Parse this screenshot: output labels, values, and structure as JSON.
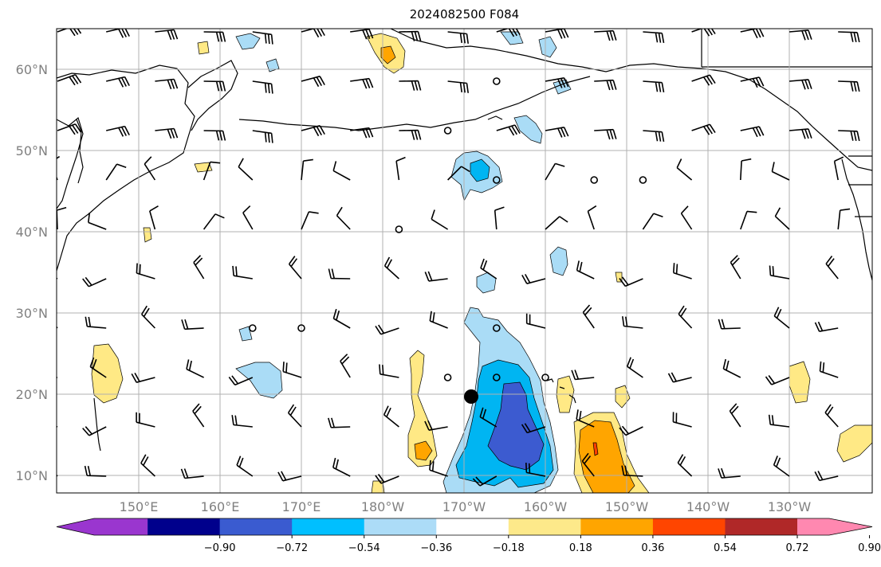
{
  "title": "2024082500 F084",
  "map": {
    "lat_labels": [
      "60°N",
      "50°N",
      "40°N",
      "30°N",
      "20°N",
      "10°N"
    ],
    "lon_labels": [
      "150°E",
      "160°E",
      "170°E",
      "180°W",
      "170°W",
      "160°W",
      "150°W",
      "140°W",
      "130°W"
    ],
    "colors": {
      "land_outline": "#000000",
      "grid": "#b0b0b0",
      "light_blue": "#aadcf6",
      "cyan": "#00b5f2",
      "med_blue": "#3c5bd0",
      "light_yellow": "#ffe985",
      "orange": "#ffa500",
      "red": "#ff3d00"
    },
    "center_marker": "filled-black-dot"
  },
  "colorbar": {
    "ticks": [
      "−0.90",
      "−0.72",
      "−0.54",
      "−0.36",
      "−0.18",
      "0.18",
      "0.36",
      "0.54",
      "0.72",
      "0.90"
    ],
    "colors": [
      "#9a36cf",
      "#00008c",
      "#3a5bd0",
      "#00bfff",
      "#acdcf7",
      "#ffffff",
      "#fde98a",
      "#ffa500",
      "#ff4500",
      "#b02828",
      "#ff88b0"
    ]
  }
}
